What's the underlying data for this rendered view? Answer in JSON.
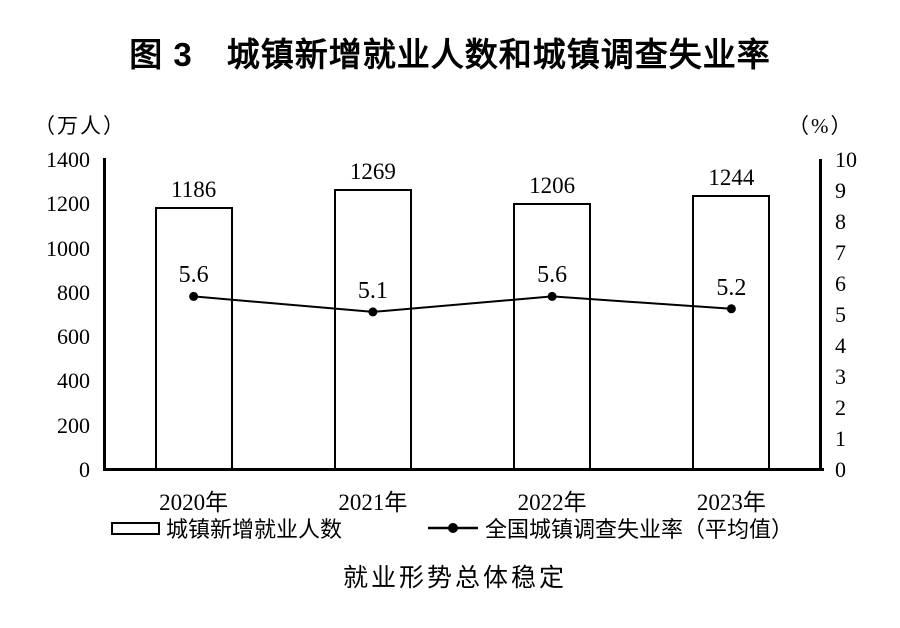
{
  "colors": {
    "ink": "#000000",
    "background": "#ffffff",
    "bar_fill": "#ffffff"
  },
  "chart_data": {
    "type": "bar",
    "title": "图 3　城镇新增就业人数和城镇调查失业率",
    "caption": "就业形势总体稳定",
    "categories": [
      "2020年",
      "2021年",
      "2022年",
      "2023年"
    ],
    "series": [
      {
        "name": "城镇新增就业人数",
        "type": "bar",
        "axis": "left",
        "values": [
          1186,
          1269,
          1206,
          1244
        ]
      },
      {
        "name": "全国城镇调查失业率（平均值）",
        "type": "line",
        "axis": "right",
        "values": [
          5.6,
          5.1,
          5.6,
          5.2
        ]
      }
    ],
    "left_axis": {
      "unit": "（万人）",
      "min": 0,
      "max": 1400,
      "tick_interval": 200,
      "ticks": [
        0,
        200,
        400,
        600,
        800,
        1000,
        1200,
        1400
      ]
    },
    "right_axis": {
      "unit": "（%）",
      "min": 0,
      "max": 10,
      "tick_interval": 1,
      "ticks": [
        0,
        1,
        2,
        3,
        4,
        5,
        6,
        7,
        8,
        9,
        10
      ]
    },
    "legend_position": "bottom",
    "grid": false,
    "bar_value_labels": [
      "1186",
      "1269",
      "1206",
      "1244"
    ],
    "line_value_labels": [
      "5.6",
      "5.1",
      "5.6",
      "5.2"
    ]
  }
}
